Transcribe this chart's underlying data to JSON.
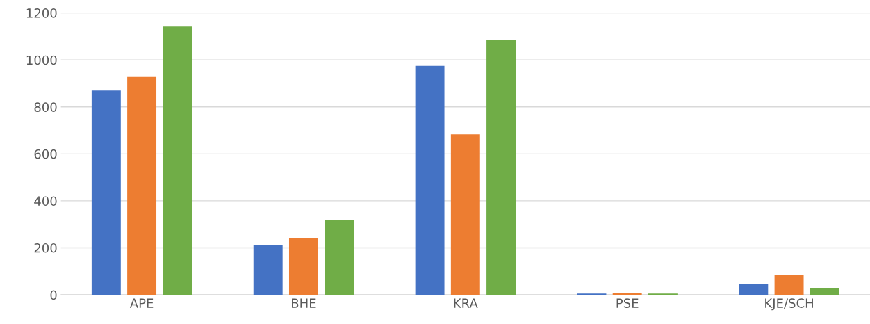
{
  "chart_data": {
    "type": "bar",
    "categories": [
      "APE",
      "BHE",
      "KRA",
      "PSE",
      "KJE/SCH"
    ],
    "series": [
      {
        "color": "#4472c4",
        "values": [
          870,
          210,
          975,
          5,
          46
        ]
      },
      {
        "color": "#ed7d31",
        "values": [
          927,
          240,
          683,
          8,
          85
        ]
      },
      {
        "color": "#70ad47",
        "values": [
          1142,
          318,
          1085,
          5,
          30
        ]
      }
    ],
    "ylim": [
      0,
      1200
    ],
    "yticks": [
      0,
      200,
      400,
      600,
      800,
      1000,
      1200
    ],
    "grid": "y"
  }
}
